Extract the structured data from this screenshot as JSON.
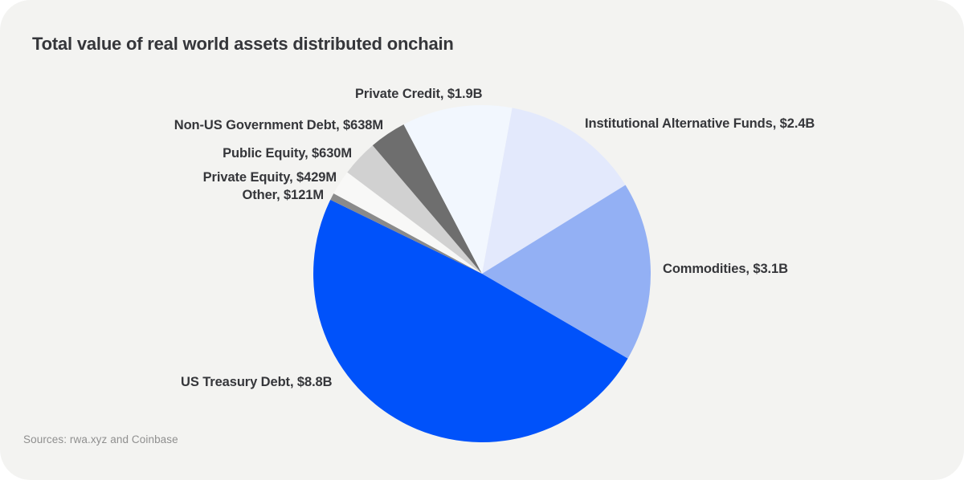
{
  "page": {
    "title": "Total value of real world assets distributed onchain",
    "source_note": "Sources: rwa.xyz and Coinbase",
    "card_background": "#F3F3F1",
    "title_color": "#35363A",
    "source_color": "#8F8F8F"
  },
  "chart_data": {
    "type": "pie",
    "title": "Total value of real world assets distributed onchain",
    "unit": "USD billions",
    "legend": "none",
    "label_placement": "outside",
    "start_angle_deg": 10.3,
    "direction": "clockwise",
    "slices": [
      {
        "label": "Institutional Alternative Funds",
        "display": "Institutional Alternative Funds, $2.4B",
        "value_billion": 2.4,
        "color": "#E3E9FC"
      },
      {
        "label": "Commodities",
        "display": "Commodities, $3.1B",
        "value_billion": 3.1,
        "color": "#93B0F4"
      },
      {
        "label": "US Treasury Debt",
        "display": "US Treasury Debt, $8.8B",
        "value_billion": 8.8,
        "color": "#0052FA"
      },
      {
        "label": "Other",
        "display": "Other, $121M",
        "value_billion": 0.121,
        "color": "#8A8A8A"
      },
      {
        "label": "Private Equity",
        "display": "Private Equity, $429M",
        "value_billion": 0.429,
        "color": "#F8F8F7"
      },
      {
        "label": "Public Equity",
        "display": "Public Equity, $630M",
        "value_billion": 0.63,
        "color": "#D1D1D1"
      },
      {
        "label": "Non-US Government Debt",
        "display": "Non-US Government Debt, $638M",
        "value_billion": 0.638,
        "color": "#6E6E6E"
      },
      {
        "label": "Private Credit",
        "display": "Private Credit, $1.9B",
        "value_billion": 1.9,
        "color": "#F2F7FE"
      }
    ]
  }
}
